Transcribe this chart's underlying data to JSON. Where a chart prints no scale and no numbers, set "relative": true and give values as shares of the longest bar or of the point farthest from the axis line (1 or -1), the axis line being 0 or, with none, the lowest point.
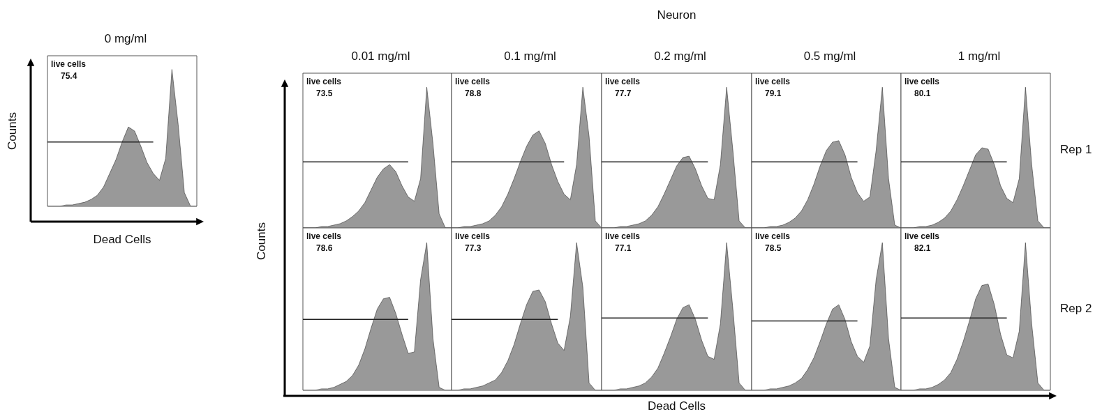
{
  "chart_data": [
    {
      "type": "area",
      "relative": true,
      "title": "0 mg/ml",
      "xlabel": "Dead Cells",
      "ylabel": "Counts",
      "annotations": [
        "live cells",
        "75.4"
      ],
      "categories": [
        null,
        null,
        null,
        null,
        null,
        null,
        null,
        null,
        null,
        null,
        null,
        null,
        null,
        null,
        null,
        null,
        null,
        null,
        null,
        null,
        null,
        null,
        null,
        null,
        null
      ],
      "series": [
        {
          "color": "#999999",
          "values": [
            0,
            0,
            0,
            0.01,
            0.01,
            0.02,
            0.03,
            0.05,
            0.08,
            0.14,
            0.24,
            0.34,
            0.47,
            0.58,
            0.55,
            0.44,
            0.32,
            0.24,
            0.19,
            0.35,
            1.0,
            0.6,
            0.1,
            0,
            0
          ]
        },
        {
          "type": "line",
          "color": "#222222",
          "values": [
            0.47,
            0.47,
            0.47,
            0.47,
            0.47,
            0.47,
            0.47,
            0.47,
            0.47,
            0.47,
            0.47,
            0.47,
            0.47,
            0.47,
            0.47,
            0.47,
            0.47,
            0.47,
            null,
            null,
            null,
            null,
            null,
            null,
            null
          ]
        }
      ]
    },
    {
      "type": "area",
      "relative": true,
      "title": "0.01 mg/ml",
      "annotations": [
        "live cells",
        "73.5"
      ],
      "categories": [
        null,
        null,
        null,
        null,
        null,
        null,
        null,
        null,
        null,
        null,
        null,
        null,
        null,
        null,
        null,
        null,
        null,
        null,
        null,
        null,
        null,
        null,
        null,
        null,
        null
      ],
      "series": [
        {
          "color": "#999999",
          "values": [
            0,
            0,
            0,
            0.01,
            0.01,
            0.02,
            0.03,
            0.05,
            0.08,
            0.12,
            0.18,
            0.27,
            0.36,
            0.42,
            0.45,
            0.4,
            0.3,
            0.22,
            0.19,
            0.35,
            1.0,
            0.6,
            0.1,
            0,
            0
          ]
        },
        {
          "type": "line",
          "color": "#222222",
          "values": [
            0.47,
            0.47,
            0.47,
            0.47,
            0.47,
            0.47,
            0.47,
            0.47,
            0.47,
            0.47,
            0.47,
            0.47,
            0.47,
            0.47,
            0.47,
            0.47,
            0.47,
            0.47,
            null,
            null,
            null,
            null,
            null,
            null,
            null
          ]
        }
      ]
    },
    {
      "type": "area",
      "relative": true,
      "title": "0.1 mg/ml",
      "annotations": [
        "live cells",
        "78.8"
      ],
      "categories": [
        null,
        null,
        null,
        null,
        null,
        null,
        null,
        null,
        null,
        null,
        null,
        null,
        null,
        null,
        null,
        null,
        null,
        null,
        null,
        null,
        null,
        null,
        null,
        null,
        null
      ],
      "series": [
        {
          "color": "#999999",
          "values": [
            0,
            0,
            0.01,
            0.01,
            0.02,
            0.03,
            0.05,
            0.09,
            0.15,
            0.24,
            0.35,
            0.47,
            0.58,
            0.66,
            0.69,
            0.6,
            0.45,
            0.33,
            0.24,
            0.2,
            0.45,
            1.0,
            0.65,
            0.05,
            0
          ]
        },
        {
          "type": "line",
          "color": "#222222",
          "values": [
            0.47,
            0.47,
            0.47,
            0.47,
            0.47,
            0.47,
            0.47,
            0.47,
            0.47,
            0.47,
            0.47,
            0.47,
            0.47,
            0.47,
            0.47,
            0.47,
            0.47,
            0.47,
            0.47,
            null,
            null,
            null,
            null,
            null,
            null
          ]
        }
      ]
    },
    {
      "type": "area",
      "relative": true,
      "title": "0.2 mg/ml",
      "annotations": [
        "live cells",
        "77.7"
      ],
      "categories": [
        null,
        null,
        null,
        null,
        null,
        null,
        null,
        null,
        null,
        null,
        null,
        null,
        null,
        null,
        null,
        null,
        null,
        null,
        null,
        null,
        null,
        null,
        null,
        null,
        null
      ],
      "series": [
        {
          "color": "#999999",
          "values": [
            0,
            0,
            0,
            0.01,
            0.01,
            0.02,
            0.03,
            0.05,
            0.09,
            0.15,
            0.24,
            0.34,
            0.44,
            0.5,
            0.51,
            0.42,
            0.3,
            0.21,
            0.2,
            0.45,
            1.0,
            0.55,
            0.05,
            0,
            0
          ]
        },
        {
          "type": "line",
          "color": "#222222",
          "values": [
            0.47,
            0.47,
            0.47,
            0.47,
            0.47,
            0.47,
            0.47,
            0.47,
            0.47,
            0.47,
            0.47,
            0.47,
            0.47,
            0.47,
            0.47,
            0.47,
            0.47,
            0.47,
            null,
            null,
            null,
            null,
            null,
            null,
            null
          ]
        }
      ]
    },
    {
      "type": "area",
      "relative": true,
      "title": "0.5 mg/ml",
      "annotations": [
        "live cells",
        "79.1"
      ],
      "categories": [
        null,
        null,
        null,
        null,
        null,
        null,
        null,
        null,
        null,
        null,
        null,
        null,
        null,
        null,
        null,
        null,
        null,
        null,
        null,
        null,
        null,
        null,
        null,
        null,
        null
      ],
      "series": [
        {
          "color": "#999999",
          "values": [
            0,
            0,
            0,
            0.01,
            0.01,
            0.02,
            0.04,
            0.07,
            0.12,
            0.2,
            0.31,
            0.44,
            0.55,
            0.61,
            0.62,
            0.52,
            0.36,
            0.25,
            0.19,
            0.22,
            0.55,
            1.0,
            0.35,
            0.02,
            0
          ]
        },
        {
          "type": "line",
          "color": "#222222",
          "values": [
            0.47,
            0.47,
            0.47,
            0.47,
            0.47,
            0.47,
            0.47,
            0.47,
            0.47,
            0.47,
            0.47,
            0.47,
            0.47,
            0.47,
            0.47,
            0.47,
            0.47,
            0.47,
            null,
            null,
            null,
            null,
            null,
            null,
            null
          ]
        }
      ]
    },
    {
      "type": "area",
      "relative": true,
      "title": "1 mg/ml",
      "y2label": "Rep 1",
      "annotations": [
        "live cells",
        "80.1"
      ],
      "categories": [
        null,
        null,
        null,
        null,
        null,
        null,
        null,
        null,
        null,
        null,
        null,
        null,
        null,
        null,
        null,
        null,
        null,
        null,
        null,
        null,
        null,
        null,
        null,
        null,
        null
      ],
      "series": [
        {
          "color": "#999999",
          "values": [
            0,
            0,
            0,
            0.01,
            0.01,
            0.02,
            0.04,
            0.07,
            0.12,
            0.2,
            0.3,
            0.41,
            0.52,
            0.57,
            0.56,
            0.45,
            0.3,
            0.21,
            0.18,
            0.35,
            1.0,
            0.45,
            0.05,
            0,
            0
          ]
        },
        {
          "type": "line",
          "color": "#222222",
          "values": [
            0.47,
            0.47,
            0.47,
            0.47,
            0.47,
            0.47,
            0.47,
            0.47,
            0.47,
            0.47,
            0.47,
            0.47,
            0.47,
            0.47,
            0.47,
            0.47,
            0.47,
            0.47,
            null,
            null,
            null,
            null,
            null,
            null,
            null
          ]
        }
      ]
    },
    {
      "type": "area",
      "relative": true,
      "annotations": [
        "live cells",
        "78.6"
      ],
      "categories": [
        null,
        null,
        null,
        null,
        null,
        null,
        null,
        null,
        null,
        null,
        null,
        null,
        null,
        null,
        null,
        null,
        null,
        null,
        null,
        null,
        null,
        null,
        null,
        null,
        null
      ],
      "series": [
        {
          "color": "#999999",
          "values": [
            0,
            0,
            0,
            0.01,
            0.01,
            0.02,
            0.04,
            0.06,
            0.1,
            0.17,
            0.28,
            0.42,
            0.55,
            0.62,
            0.63,
            0.52,
            0.38,
            0.25,
            0.26,
            0.75,
            1.0,
            0.35,
            0.02,
            0,
            0
          ]
        },
        {
          "type": "line",
          "color": "#222222",
          "values": [
            0.48,
            0.48,
            0.48,
            0.48,
            0.48,
            0.48,
            0.48,
            0.48,
            0.48,
            0.48,
            0.48,
            0.48,
            0.48,
            0.48,
            0.48,
            0.48,
            0.48,
            0.48,
            null,
            null,
            null,
            null,
            null,
            null,
            null
          ]
        }
      ]
    },
    {
      "type": "area",
      "relative": true,
      "annotations": [
        "live cells",
        "77.3"
      ],
      "categories": [
        null,
        null,
        null,
        null,
        null,
        null,
        null,
        null,
        null,
        null,
        null,
        null,
        null,
        null,
        null,
        null,
        null,
        null,
        null,
        null,
        null,
        null,
        null,
        null,
        null
      ],
      "series": [
        {
          "color": "#999999",
          "values": [
            0,
            0,
            0.01,
            0.01,
            0.02,
            0.03,
            0.05,
            0.07,
            0.12,
            0.2,
            0.31,
            0.45,
            0.58,
            0.67,
            0.68,
            0.6,
            0.45,
            0.32,
            0.27,
            0.5,
            1.0,
            0.7,
            0.05,
            0,
            0
          ]
        },
        {
          "type": "line",
          "color": "#222222",
          "values": [
            0.48,
            0.48,
            0.48,
            0.48,
            0.48,
            0.48,
            0.48,
            0.48,
            0.48,
            0.48,
            0.48,
            0.48,
            0.48,
            0.48,
            0.48,
            0.48,
            0.48,
            0.48,
            null,
            null,
            null,
            null,
            null,
            null,
            null
          ]
        }
      ]
    },
    {
      "type": "area",
      "relative": true,
      "annotations": [
        "live cells",
        "77.1"
      ],
      "categories": [
        null,
        null,
        null,
        null,
        null,
        null,
        null,
        null,
        null,
        null,
        null,
        null,
        null,
        null,
        null,
        null,
        null,
        null,
        null,
        null,
        null,
        null,
        null,
        null,
        null
      ],
      "series": [
        {
          "color": "#999999",
          "values": [
            0,
            0,
            0,
            0.01,
            0.01,
            0.02,
            0.03,
            0.05,
            0.09,
            0.15,
            0.25,
            0.36,
            0.48,
            0.56,
            0.58,
            0.48,
            0.34,
            0.23,
            0.21,
            0.45,
            1.0,
            0.55,
            0.05,
            0,
            0
          ]
        },
        {
          "type": "line",
          "color": "#222222",
          "values": [
            0.49,
            0.49,
            0.49,
            0.49,
            0.49,
            0.49,
            0.49,
            0.49,
            0.49,
            0.49,
            0.49,
            0.49,
            0.49,
            0.49,
            0.49,
            0.49,
            0.49,
            0.49,
            null,
            null,
            null,
            null,
            null,
            null,
            null
          ]
        }
      ]
    },
    {
      "type": "area",
      "relative": true,
      "annotations": [
        "live cells",
        "78.5"
      ],
      "categories": [
        null,
        null,
        null,
        null,
        null,
        null,
        null,
        null,
        null,
        null,
        null,
        null,
        null,
        null,
        null,
        null,
        null,
        null,
        null,
        null,
        null,
        null,
        null,
        null,
        null
      ],
      "series": [
        {
          "color": "#999999",
          "values": [
            0,
            0,
            0,
            0.01,
            0.01,
            0.02,
            0.03,
            0.05,
            0.08,
            0.14,
            0.22,
            0.33,
            0.45,
            0.55,
            0.58,
            0.48,
            0.33,
            0.23,
            0.19,
            0.3,
            0.75,
            1.0,
            0.35,
            0.02,
            0
          ]
        },
        {
          "type": "line",
          "color": "#222222",
          "values": [
            0.47,
            0.47,
            0.47,
            0.47,
            0.47,
            0.47,
            0.47,
            0.47,
            0.47,
            0.47,
            0.47,
            0.47,
            0.47,
            0.47,
            0.47,
            0.47,
            0.47,
            0.47,
            null,
            null,
            null,
            null,
            null,
            null,
            null
          ]
        }
      ]
    },
    {
      "type": "area",
      "relative": true,
      "y2label": "Rep 2",
      "annotations": [
        "live cells",
        "82.1"
      ],
      "categories": [
        null,
        null,
        null,
        null,
        null,
        null,
        null,
        null,
        null,
        null,
        null,
        null,
        null,
        null,
        null,
        null,
        null,
        null,
        null,
        null,
        null,
        null,
        null,
        null,
        null
      ],
      "series": [
        {
          "color": "#999999",
          "values": [
            0,
            0,
            0,
            0.01,
            0.01,
            0.02,
            0.04,
            0.07,
            0.12,
            0.21,
            0.33,
            0.47,
            0.62,
            0.71,
            0.72,
            0.58,
            0.38,
            0.24,
            0.22,
            0.4,
            1.0,
            0.45,
            0.05,
            0,
            0
          ]
        },
        {
          "type": "line",
          "color": "#222222",
          "values": [
            0.49,
            0.49,
            0.49,
            0.49,
            0.49,
            0.49,
            0.49,
            0.49,
            0.49,
            0.49,
            0.49,
            0.49,
            0.49,
            0.49,
            0.49,
            0.49,
            0.49,
            0.49,
            null,
            null,
            null,
            null,
            null,
            null,
            null
          ]
        }
      ]
    },
    {
      "type": "other",
      "title": "Neuron",
      "xlabel": "Dead Cells",
      "ylabel": "Counts"
    }
  ]
}
